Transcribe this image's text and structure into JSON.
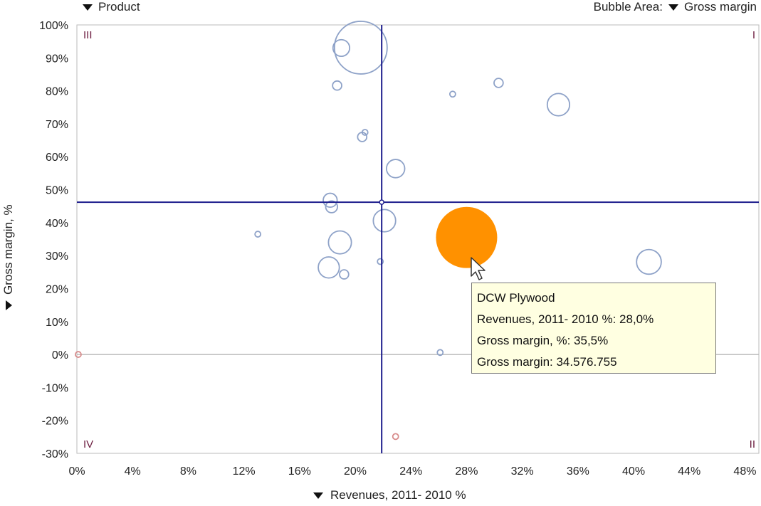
{
  "controls": {
    "product_label": "Product",
    "bubble_area_prefix": "Bubble Area:",
    "bubble_area_value": "Gross margin",
    "x_axis_label": "Revenues, 2011-  2010 %",
    "y_axis_label": "Gross margin, %"
  },
  "tooltip": {
    "title": "DCW Plywood",
    "line1": "Revenues, 2011-  2010 %: 28,0%",
    "line2": "Gross margin, %: 35,5%",
    "line3": "Gross margin: 34.576.755"
  },
  "colors": {
    "bubble_stroke": "#8ea2c8",
    "negative_stroke": "#d88c8c",
    "selected_fill": "#ff9100",
    "reference_line": "#1c1c8c",
    "zero_line": "#bbbbbb",
    "frame": "#bbbbbb"
  },
  "chart_data": {
    "type": "scatter",
    "title": "",
    "xlabel": "Revenues, 2011-  2010 %",
    "ylabel": "Gross margin, %",
    "xlim": [
      0,
      49
    ],
    "ylim": [
      -30,
      100
    ],
    "x_ticks": [
      "0%",
      "4%",
      "8%",
      "12%",
      "16%",
      "20%",
      "24%",
      "28%",
      "32%",
      "36%",
      "40%",
      "44%",
      "48%"
    ],
    "y_ticks": [
      "100%",
      "90%",
      "80%",
      "70%",
      "60%",
      "50%",
      "40%",
      "30%",
      "20%",
      "10%",
      "0%",
      "-10%",
      "-20%",
      "-30%"
    ],
    "quadrant_labels": {
      "top_left": "III",
      "top_right": "I",
      "bottom_left": "IV",
      "bottom_right": "II"
    },
    "reference_lines": {
      "x": 21.9,
      "y": 46.2
    },
    "grid": false,
    "bubble_size_measure": "Gross margin",
    "selected_point": "DCW Plywood",
    "points": [
      {
        "x": 20.4,
        "y": 93.1,
        "size": 1.0
      },
      {
        "x": 19.0,
        "y": 93.0,
        "size": 0.1
      },
      {
        "x": 18.7,
        "y": 81.6,
        "size": 0.03
      },
      {
        "x": 27.0,
        "y": 79.0,
        "size": 0.01
      },
      {
        "x": 30.3,
        "y": 82.4,
        "size": 0.03
      },
      {
        "x": 34.6,
        "y": 75.8,
        "size": 0.18
      },
      {
        "x": 20.7,
        "y": 67.4,
        "size": 0.01
      },
      {
        "x": 20.5,
        "y": 66.0,
        "size": 0.03
      },
      {
        "x": 22.9,
        "y": 56.4,
        "size": 0.12
      },
      {
        "x": 18.2,
        "y": 46.8,
        "size": 0.07
      },
      {
        "x": 18.3,
        "y": 44.8,
        "size": 0.05
      },
      {
        "x": 22.1,
        "y": 40.6,
        "size": 0.18
      },
      {
        "x": 13.0,
        "y": 36.5,
        "size": 0.01
      },
      {
        "x": 18.9,
        "y": 34.0,
        "size": 0.19
      },
      {
        "x": 28.0,
        "y": 35.5,
        "size": 1.35,
        "name": "DCW Plywood",
        "selected": true
      },
      {
        "x": 21.8,
        "y": 28.2,
        "size": 0.01
      },
      {
        "x": 18.1,
        "y": 26.4,
        "size": 0.16
      },
      {
        "x": 19.2,
        "y": 24.3,
        "size": 0.03
      },
      {
        "x": 41.1,
        "y": 28.1,
        "size": 0.22
      },
      {
        "x": 26.1,
        "y": 0.6,
        "size": 0.01
      },
      {
        "x": 0.1,
        "y": 0.0,
        "size": 0.01,
        "negative": true
      },
      {
        "x": 22.9,
        "y": -24.9,
        "size": 0.01,
        "negative": true
      }
    ]
  }
}
